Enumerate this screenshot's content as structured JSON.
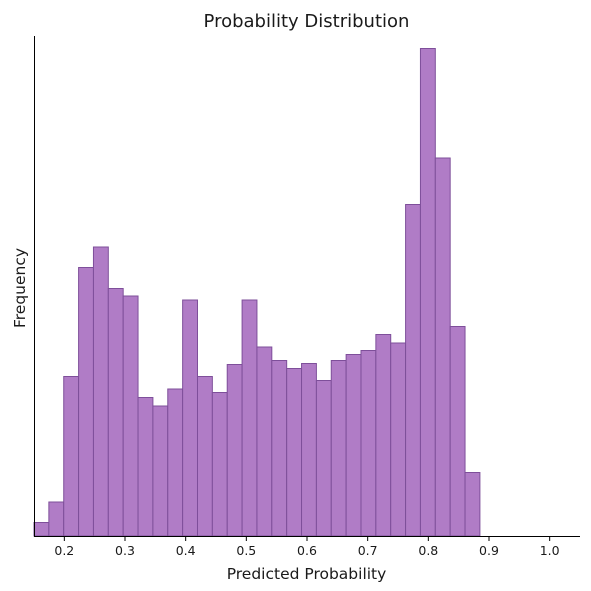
{
  "chart_data": {
    "type": "bar",
    "title": "Probability Distribution",
    "xlabel": "Predicted Probability",
    "ylabel": "Frequency",
    "xlim": [
      0.15,
      1.05
    ],
    "ylim": [
      0,
      100
    ],
    "x_ticks": [
      0.2,
      0.3,
      0.4,
      0.5,
      0.6,
      0.7,
      0.8,
      0.9,
      1.0
    ],
    "x_tick_labels": [
      "0.2",
      "0.3",
      "0.4",
      "0.5",
      "0.6",
      "0.7",
      "0.8",
      "0.9",
      "1.0"
    ],
    "y_ticks_shown": false,
    "grid": false,
    "bar_color": "#b07cc6",
    "edge_color": "#7e4f9a",
    "bins": [
      [
        0.15,
        0.1745,
        2.7
      ],
      [
        0.1745,
        0.199,
        6.8
      ],
      [
        0.199,
        0.2235,
        31.9
      ],
      [
        0.2235,
        0.248,
        53.7
      ],
      [
        0.248,
        0.2725,
        57.8
      ],
      [
        0.2725,
        0.297,
        49.5
      ],
      [
        0.297,
        0.3215,
        48.0
      ],
      [
        0.3215,
        0.346,
        27.7
      ],
      [
        0.346,
        0.3705,
        26.0
      ],
      [
        0.3705,
        0.395,
        29.4
      ],
      [
        0.395,
        0.4195,
        47.2
      ],
      [
        0.4195,
        0.444,
        31.9
      ],
      [
        0.444,
        0.4685,
        28.7
      ],
      [
        0.4685,
        0.493,
        34.3
      ],
      [
        0.493,
        0.5175,
        47.2
      ],
      [
        0.5175,
        0.542,
        37.8
      ],
      [
        0.542,
        0.5665,
        35.1
      ],
      [
        0.5665,
        0.591,
        33.5
      ],
      [
        0.591,
        0.6155,
        34.5
      ],
      [
        0.6155,
        0.64,
        31.1
      ],
      [
        0.64,
        0.6645,
        35.1
      ],
      [
        0.6645,
        0.689,
        36.3
      ],
      [
        0.689,
        0.7135,
        37.1
      ],
      [
        0.7135,
        0.738,
        40.3
      ],
      [
        0.738,
        0.7625,
        38.6
      ],
      [
        0.7625,
        0.787,
        66.3
      ],
      [
        0.787,
        0.8115,
        97.5
      ],
      [
        0.8115,
        0.836,
        75.6
      ],
      [
        0.836,
        0.8605,
        41.9
      ],
      [
        0.8605,
        0.885,
        12.7
      ]
    ]
  }
}
